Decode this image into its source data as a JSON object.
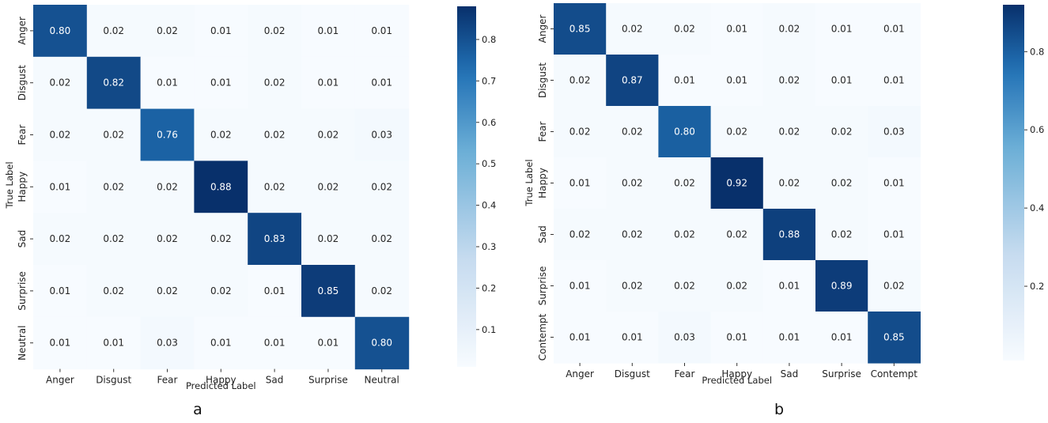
{
  "colors": {
    "low": "#f7fbff",
    "mid1": "#c6dbef",
    "mid2": "#6baed6",
    "mid3": "#2171b5",
    "high": "#08306b",
    "dark_text": "#262626",
    "light_text": "#ffffff"
  },
  "chart_data": [
    {
      "type": "heatmap",
      "panel_label": "a",
      "xlabel": "Predicted Label",
      "ylabel": "True Label",
      "x_categories": [
        "Anger",
        "Disgust",
        "Fear",
        "Happy",
        "Sad",
        "Surprise",
        "Neutral"
      ],
      "y_categories": [
        "Anger",
        "Disgust",
        "Fear",
        "Happy",
        "Sad",
        "Surprise",
        "Neutral"
      ],
      "values": [
        [
          0.8,
          0.02,
          0.02,
          0.01,
          0.02,
          0.01,
          0.01
        ],
        [
          0.02,
          0.82,
          0.01,
          0.01,
          0.02,
          0.01,
          0.01
        ],
        [
          0.02,
          0.02,
          0.76,
          0.02,
          0.02,
          0.02,
          0.03
        ],
        [
          0.01,
          0.02,
          0.02,
          0.88,
          0.02,
          0.02,
          0.02
        ],
        [
          0.02,
          0.02,
          0.02,
          0.02,
          0.83,
          0.02,
          0.02
        ],
        [
          0.01,
          0.02,
          0.02,
          0.02,
          0.01,
          0.85,
          0.02
        ],
        [
          0.01,
          0.01,
          0.03,
          0.01,
          0.01,
          0.01,
          0.8
        ]
      ],
      "colorbar": {
        "min": 0.01,
        "max": 0.88,
        "ticks": [
          0.1,
          0.2,
          0.3,
          0.4,
          0.5,
          0.6,
          0.7,
          0.8
        ],
        "tick_labels": [
          "0.1",
          "0.2",
          "0.3",
          "0.4",
          "0.5",
          "0.6",
          "0.7",
          "0.8"
        ]
      }
    },
    {
      "type": "heatmap",
      "panel_label": "b",
      "xlabel": "Predicted Label",
      "ylabel": "True Label",
      "x_categories": [
        "Anger",
        "Disgust",
        "Fear",
        "Happy",
        "Sad",
        "Surprise",
        "Contempt"
      ],
      "y_categories": [
        "Anger",
        "Disgust",
        "Fear",
        "Happy",
        "Sad",
        "Surprise",
        "Contempt"
      ],
      "values": [
        [
          0.85,
          0.02,
          0.02,
          0.01,
          0.02,
          0.01,
          0.01
        ],
        [
          0.02,
          0.87,
          0.01,
          0.01,
          0.02,
          0.01,
          0.01
        ],
        [
          0.02,
          0.02,
          0.8,
          0.02,
          0.02,
          0.02,
          0.03
        ],
        [
          0.01,
          0.02,
          0.02,
          0.92,
          0.02,
          0.02,
          0.01
        ],
        [
          0.02,
          0.02,
          0.02,
          0.02,
          0.88,
          0.02,
          0.01
        ],
        [
          0.01,
          0.02,
          0.02,
          0.02,
          0.01,
          0.89,
          0.02
        ],
        [
          0.01,
          0.01,
          0.03,
          0.01,
          0.01,
          0.01,
          0.85
        ]
      ],
      "colorbar": {
        "min": 0.01,
        "max": 0.92,
        "ticks": [
          0.2,
          0.4,
          0.6,
          0.8
        ],
        "tick_labels": [
          "0.2",
          "0.4",
          "0.6",
          "0.8"
        ]
      }
    }
  ]
}
